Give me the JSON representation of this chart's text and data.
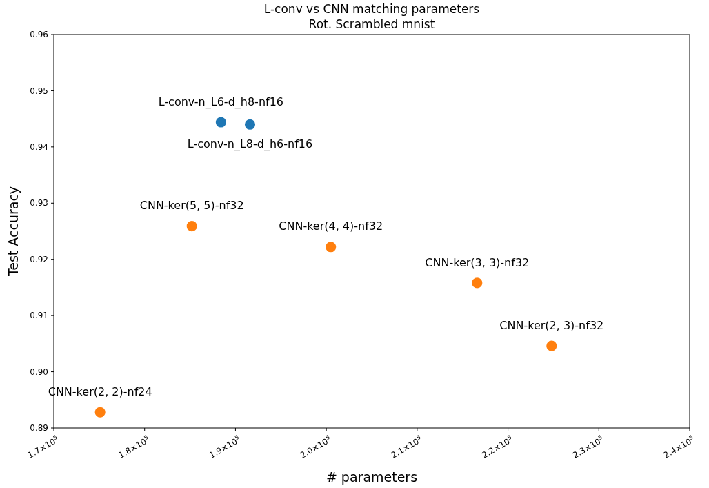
{
  "chart_data": {
    "type": "scatter",
    "title": "L-conv vs CNN matching parameters",
    "subtitle": "Rot. Scrambled mnist",
    "xlabel": "# parameters",
    "ylabel": "Test Accuracy",
    "series": [
      {
        "color": "#1f77b4",
        "x": [
          188400,
          191600
        ],
        "values": [
          0.9444,
          0.944
        ]
      },
      {
        "color": "#ff7f0e",
        "x": [
          185200,
          200500,
          216600,
          224800,
          175100
        ],
        "values": [
          0.9259,
          0.9222,
          0.9158,
          0.9046,
          0.8928
        ]
      }
    ],
    "xlim": [
      170000,
      240000
    ],
    "xticks": [
      {
        "value": 170000,
        "label": "1.7×10$^{5}$"
      },
      {
        "value": 180000,
        "label": "1.8×10$^{5}$"
      },
      {
        "value": 190000,
        "label": "1.9×10$^{5}$"
      },
      {
        "value": 200000,
        "label": "2.0×10$^{5}$"
      },
      {
        "value": 210000,
        "label": "2.1×10$^{5}$"
      },
      {
        "value": 220000,
        "label": "2.2×10$^{5}$"
      },
      {
        "value": 230000,
        "label": "2.3×10$^{5}$"
      },
      {
        "value": 240000,
        "label": "2.4×10$^{5}$"
      }
    ],
    "ylim": [
      0.89,
      0.96
    ],
    "yticks": [
      {
        "value": 0.89,
        "label": "0.89"
      },
      {
        "value": 0.9,
        "label": "0.90"
      },
      {
        "value": 0.91,
        "label": "0.91"
      },
      {
        "value": 0.92,
        "label": "0.92"
      },
      {
        "value": 0.93,
        "label": "0.93"
      },
      {
        "value": 0.94,
        "label": "0.94"
      },
      {
        "value": 0.95,
        "label": "0.95"
      },
      {
        "value": 0.96,
        "label": "0.96"
      }
    ],
    "marker": "circle",
    "grid": false,
    "annotations": [
      {
        "text": "L-conv-n_L6-d_h8-nf16",
        "x": 188400,
        "y": 0.9444
      },
      {
        "text": "L-conv-n_L8-d_h6-nf16",
        "x": 191600,
        "y": 0.944
      },
      {
        "text": "CNN-ker(5, 5)-nf32",
        "x": 185200,
        "y": 0.9259
      },
      {
        "text": "CNN-ker(4, 4)-nf32",
        "x": 200500,
        "y": 0.9222
      },
      {
        "text": "CNN-ker(3, 3)-nf32",
        "x": 216600,
        "y": 0.9158
      },
      {
        "text": "CNN-ker(2, 3)-nf32",
        "x": 224800,
        "y": 0.9046
      },
      {
        "text": "CNN-ker(2, 2)-nf24",
        "x": 175100,
        "y": 0.8928
      }
    ]
  }
}
